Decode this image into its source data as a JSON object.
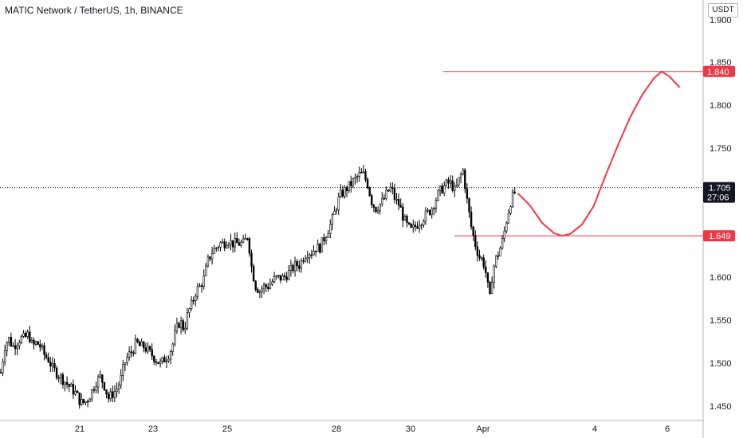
{
  "header": {
    "title": "MATIC Network / TetherUS, 1h, BINANCE",
    "currency": "USDT"
  },
  "badges": {
    "last_price": "1.705",
    "countdown": "27:06",
    "target": "1.840",
    "support": "1.649"
  },
  "colors": {
    "candle": "#000000",
    "annotation": "#f23645",
    "badge_dark": "#131722",
    "axis_text": "#131722",
    "axis_line": "#b2b5be"
  },
  "chart_data": {
    "type": "candlestick",
    "title": "MATIC Network / TetherUS, 1h, BINANCE",
    "xlabel": "",
    "ylabel": "",
    "ylim": [
      1.43,
      1.925
    ],
    "x_tick_labels": [
      "21",
      "23",
      "25",
      "28",
      "30",
      "Apr",
      "4",
      "6"
    ],
    "y_tick_labels": [
      "1.900",
      "1.850",
      "1.800",
      "1.750",
      "1.600",
      "1.550",
      "1.500",
      "1.450"
    ],
    "grid": false,
    "price_path": [
      [
        0,
        1.49
      ],
      [
        5,
        1.52
      ],
      [
        10,
        1.53
      ],
      [
        15,
        1.52
      ],
      [
        20,
        1.525
      ],
      [
        25,
        1.53
      ],
      [
        30,
        1.53
      ],
      [
        35,
        1.535
      ],
      [
        40,
        1.52
      ],
      [
        45,
        1.525
      ],
      [
        50,
        1.52
      ],
      [
        55,
        1.51
      ],
      [
        60,
        1.505
      ],
      [
        65,
        1.495
      ],
      [
        70,
        1.49
      ],
      [
        75,
        1.485
      ],
      [
        80,
        1.48
      ],
      [
        85,
        1.475
      ],
      [
        90,
        1.47
      ],
      [
        95,
        1.465
      ],
      [
        100,
        1.455
      ],
      [
        105,
        1.455
      ],
      [
        110,
        1.46
      ],
      [
        115,
        1.47
      ],
      [
        120,
        1.48
      ],
      [
        125,
        1.485
      ],
      [
        130,
        1.475
      ],
      [
        135,
        1.46
      ],
      [
        140,
        1.465
      ],
      [
        145,
        1.47
      ],
      [
        150,
        1.48
      ],
      [
        155,
        1.5
      ],
      [
        160,
        1.51
      ],
      [
        165,
        1.515
      ],
      [
        170,
        1.525
      ],
      [
        175,
        1.52
      ],
      [
        180,
        1.52
      ],
      [
        185,
        1.515
      ],
      [
        190,
        1.51
      ],
      [
        195,
        1.505
      ],
      [
        200,
        1.5
      ],
      [
        205,
        1.505
      ],
      [
        210,
        1.51
      ],
      [
        215,
        1.52
      ],
      [
        220,
        1.54
      ],
      [
        225,
        1.55
      ],
      [
        230,
        1.54
      ],
      [
        235,
        1.56
      ],
      [
        240,
        1.57
      ],
      [
        245,
        1.585
      ],
      [
        250,
        1.59
      ],
      [
        255,
        1.6
      ],
      [
        260,
        1.62
      ],
      [
        265,
        1.63
      ],
      [
        270,
        1.635
      ],
      [
        275,
        1.64
      ],
      [
        280,
        1.64
      ],
      [
        285,
        1.645
      ],
      [
        290,
        1.64
      ],
      [
        295,
        1.64
      ],
      [
        300,
        1.64
      ],
      [
        305,
        1.64
      ],
      [
        310,
        1.65
      ],
      [
        315,
        1.61
      ],
      [
        320,
        1.59
      ],
      [
        325,
        1.585
      ],
      [
        330,
        1.59
      ],
      [
        335,
        1.59
      ],
      [
        340,
        1.595
      ],
      [
        345,
        1.6
      ],
      [
        350,
        1.6
      ],
      [
        355,
        1.6
      ],
      [
        360,
        1.605
      ],
      [
        365,
        1.61
      ],
      [
        370,
        1.615
      ],
      [
        375,
        1.615
      ],
      [
        380,
        1.625
      ],
      [
        385,
        1.63
      ],
      [
        390,
        1.63
      ],
      [
        395,
        1.635
      ],
      [
        400,
        1.635
      ],
      [
        405,
        1.645
      ],
      [
        410,
        1.655
      ],
      [
        415,
        1.665
      ],
      [
        420,
        1.68
      ],
      [
        425,
        1.695
      ],
      [
        430,
        1.7
      ],
      [
        435,
        1.705
      ],
      [
        440,
        1.71
      ],
      [
        445,
        1.715
      ],
      [
        450,
        1.72
      ],
      [
        455,
        1.72
      ],
      [
        460,
        1.71
      ],
      [
        465,
        1.69
      ],
      [
        470,
        1.68
      ],
      [
        475,
        1.685
      ],
      [
        480,
        1.69
      ],
      [
        485,
        1.7
      ],
      [
        490,
        1.705
      ],
      [
        495,
        1.69
      ],
      [
        500,
        1.685
      ],
      [
        505,
        1.67
      ],
      [
        510,
        1.66
      ],
      [
        515,
        1.655
      ],
      [
        520,
        1.66
      ],
      [
        525,
        1.665
      ],
      [
        530,
        1.67
      ],
      [
        535,
        1.675
      ],
      [
        540,
        1.68
      ],
      [
        545,
        1.69
      ],
      [
        550,
        1.7
      ],
      [
        555,
        1.705
      ],
      [
        560,
        1.71
      ],
      [
        565,
        1.71
      ],
      [
        570,
        1.7
      ],
      [
        575,
        1.715
      ],
      [
        580,
        1.725
      ],
      [
        585,
        1.69
      ],
      [
        590,
        1.66
      ],
      [
        595,
        1.64
      ],
      [
        600,
        1.625
      ],
      [
        605,
        1.62
      ],
      [
        610,
        1.6
      ],
      [
        613,
        1.57
      ],
      [
        616,
        1.6
      ],
      [
        620,
        1.62
      ],
      [
        625,
        1.63
      ],
      [
        630,
        1.645
      ],
      [
        635,
        1.67
      ],
      [
        640,
        1.69
      ],
      [
        645,
        1.7
      ]
    ],
    "levels": [
      {
        "label": "1.840",
        "value": 1.84
      },
      {
        "label": "1.649",
        "value": 1.649
      },
      {
        "label": "1.705",
        "value": 1.705
      }
    ],
    "projection": [
      [
        650,
        1.698
      ],
      [
        665,
        1.684
      ],
      [
        680,
        1.664
      ],
      [
        695,
        1.652
      ],
      [
        705,
        1.649
      ],
      [
        715,
        1.651
      ],
      [
        730,
        1.662
      ],
      [
        745,
        1.684
      ],
      [
        760,
        1.72
      ],
      [
        775,
        1.754
      ],
      [
        790,
        1.786
      ],
      [
        805,
        1.812
      ],
      [
        820,
        1.832
      ],
      [
        830,
        1.84
      ],
      [
        840,
        1.834
      ],
      [
        852,
        1.822
      ]
    ]
  }
}
